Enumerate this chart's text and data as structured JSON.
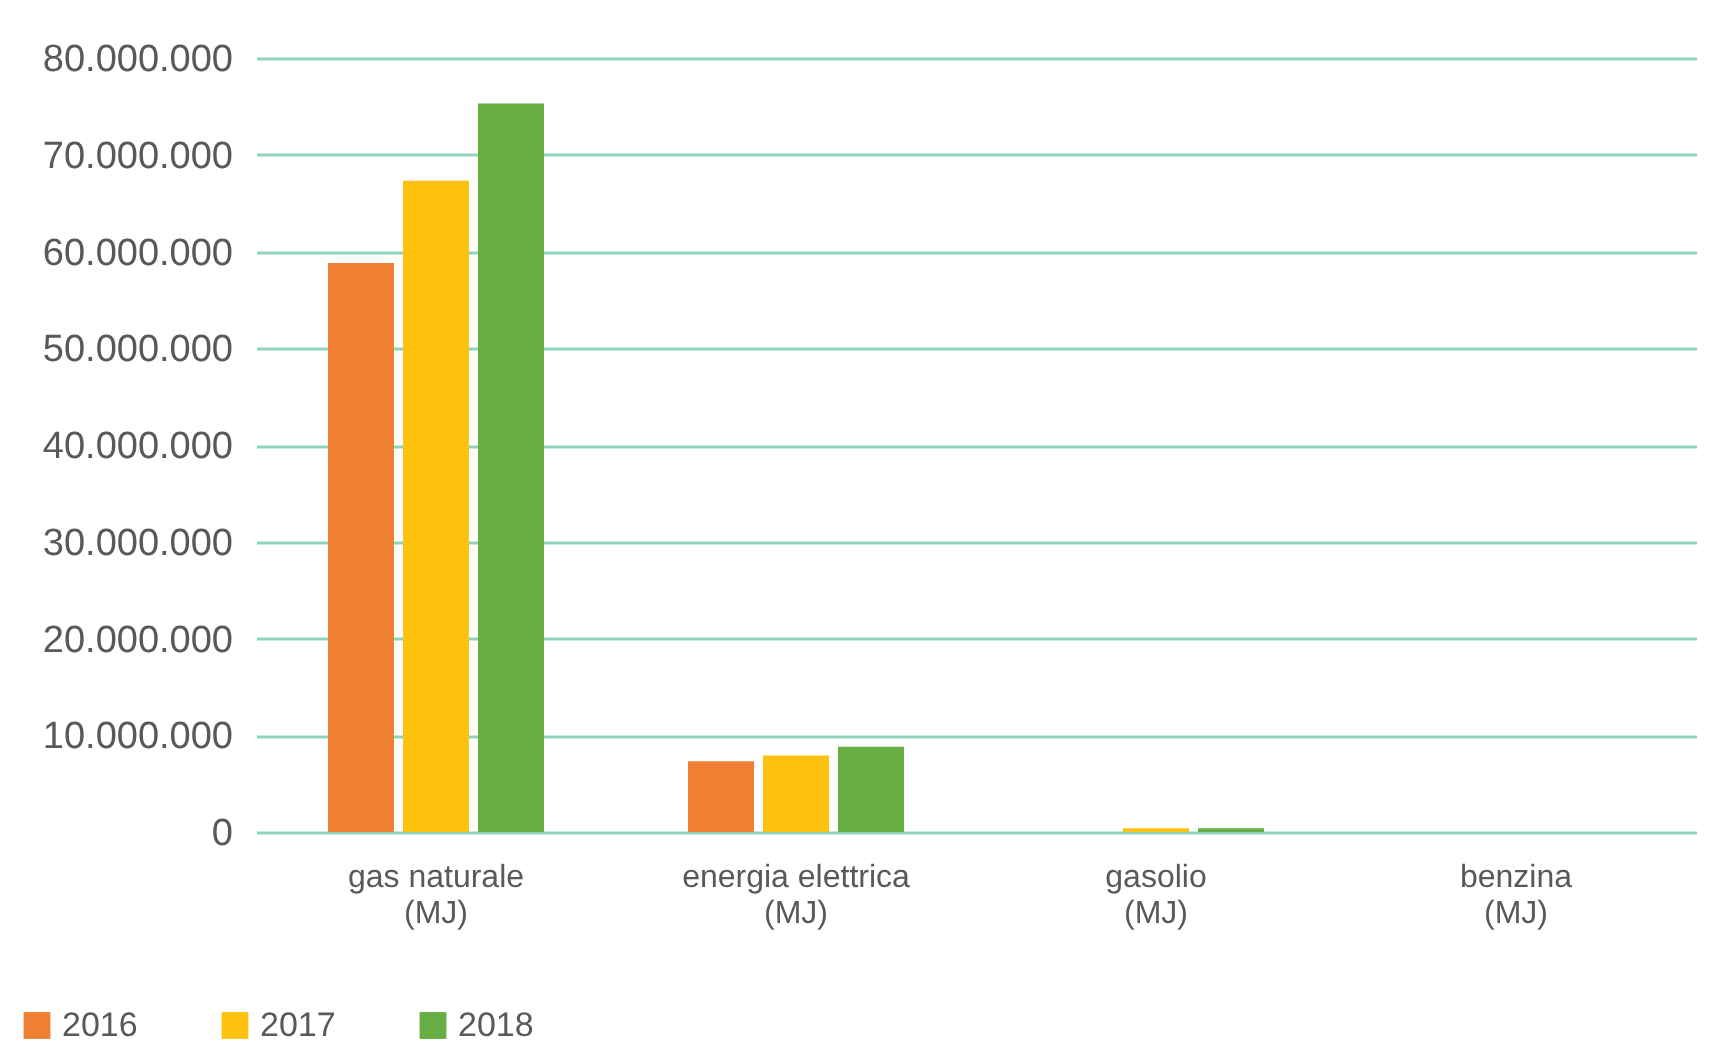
{
  "chart_data": {
    "type": "bar",
    "categories": [
      "gas naturale\n(MJ)",
      "energia elettrica\n(MJ)",
      "gasolio\n(MJ)",
      "benzina\n(MJ)"
    ],
    "series": [
      {
        "name": "2016",
        "color": "#ef7f33",
        "values": [
          58800000,
          7300000,
          0,
          0
        ]
      },
      {
        "name": "2017",
        "color": "#fcc20f",
        "values": [
          67300000,
          7900000,
          400000,
          0
        ]
      },
      {
        "name": "2018",
        "color": "#66ad42",
        "values": [
          75300000,
          8800000,
          400000,
          0
        ]
      }
    ],
    "ylim": [
      0,
      80000000
    ],
    "yticks": [
      {
        "value": 0,
        "label": "0"
      },
      {
        "value": 10000000,
        "label": "10.000.000"
      },
      {
        "value": 20000000,
        "label": "20.000.000"
      },
      {
        "value": 30000000,
        "label": "30.000.000"
      },
      {
        "value": 40000000,
        "label": "40.000.000"
      },
      {
        "value": 50000000,
        "label": "50.000.000"
      },
      {
        "value": 60000000,
        "label": "60.000.000"
      },
      {
        "value": 70000000,
        "label": "70.000.000"
      },
      {
        "value": 80000000,
        "label": "80.000.000"
      }
    ],
    "grid": "y",
    "legend": "bottom left"
  }
}
